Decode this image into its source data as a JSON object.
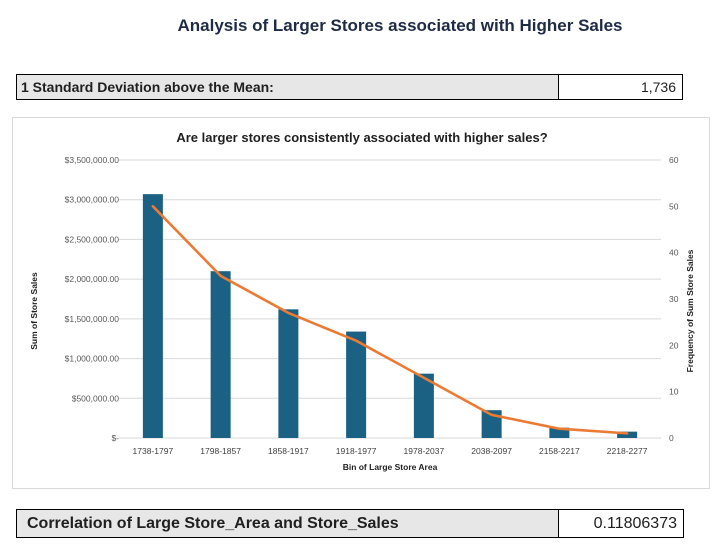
{
  "page": {
    "title": "Analysis of Larger Stores associated with Higher Sales",
    "sd_label": "1 Standard Deviation above the Mean:",
    "sd_value": "1,736",
    "corr_label": "Correlation of Large Store_Area and Store_Sales",
    "corr_value": "0.11806373"
  },
  "chart_data": {
    "type": "bar",
    "title": "Are larger stores consistently associated with higher sales?",
    "xlabel": "Bin of Large Store Area",
    "ylabel": "Sum of Store Sales",
    "y2label": "Frequency of Sum Store Sales",
    "categories": [
      "1738-1797",
      "1798-1857",
      "1858-1917",
      "1918-1977",
      "1978-2037",
      "2038-2097",
      "2158-2217",
      "2218-2277"
    ],
    "series": [
      {
        "type": "bar",
        "axis": "left",
        "values": [
          3070000,
          2100000,
          1620000,
          1340000,
          810000,
          350000,
          130000,
          80000
        ]
      },
      {
        "type": "line",
        "axis": "right",
        "values": [
          50,
          35,
          27,
          21,
          13,
          5,
          2,
          1
        ]
      }
    ],
    "ylim": [
      0,
      3500000
    ],
    "y2lim": [
      0,
      60
    ],
    "yticks": [
      "$-",
      "$500,000.00",
      "$1,000,000.00",
      "$1,500,000.00",
      "$2,000,000.00",
      "$2,500,000.00",
      "$3,000,000.00",
      "$3,500,000.00"
    ],
    "y2ticks": [
      "0",
      "10",
      "20",
      "30",
      "40",
      "50",
      "60"
    ],
    "grid": true,
    "bar_color": "#1b6183",
    "line_color": "#ec7a33"
  }
}
